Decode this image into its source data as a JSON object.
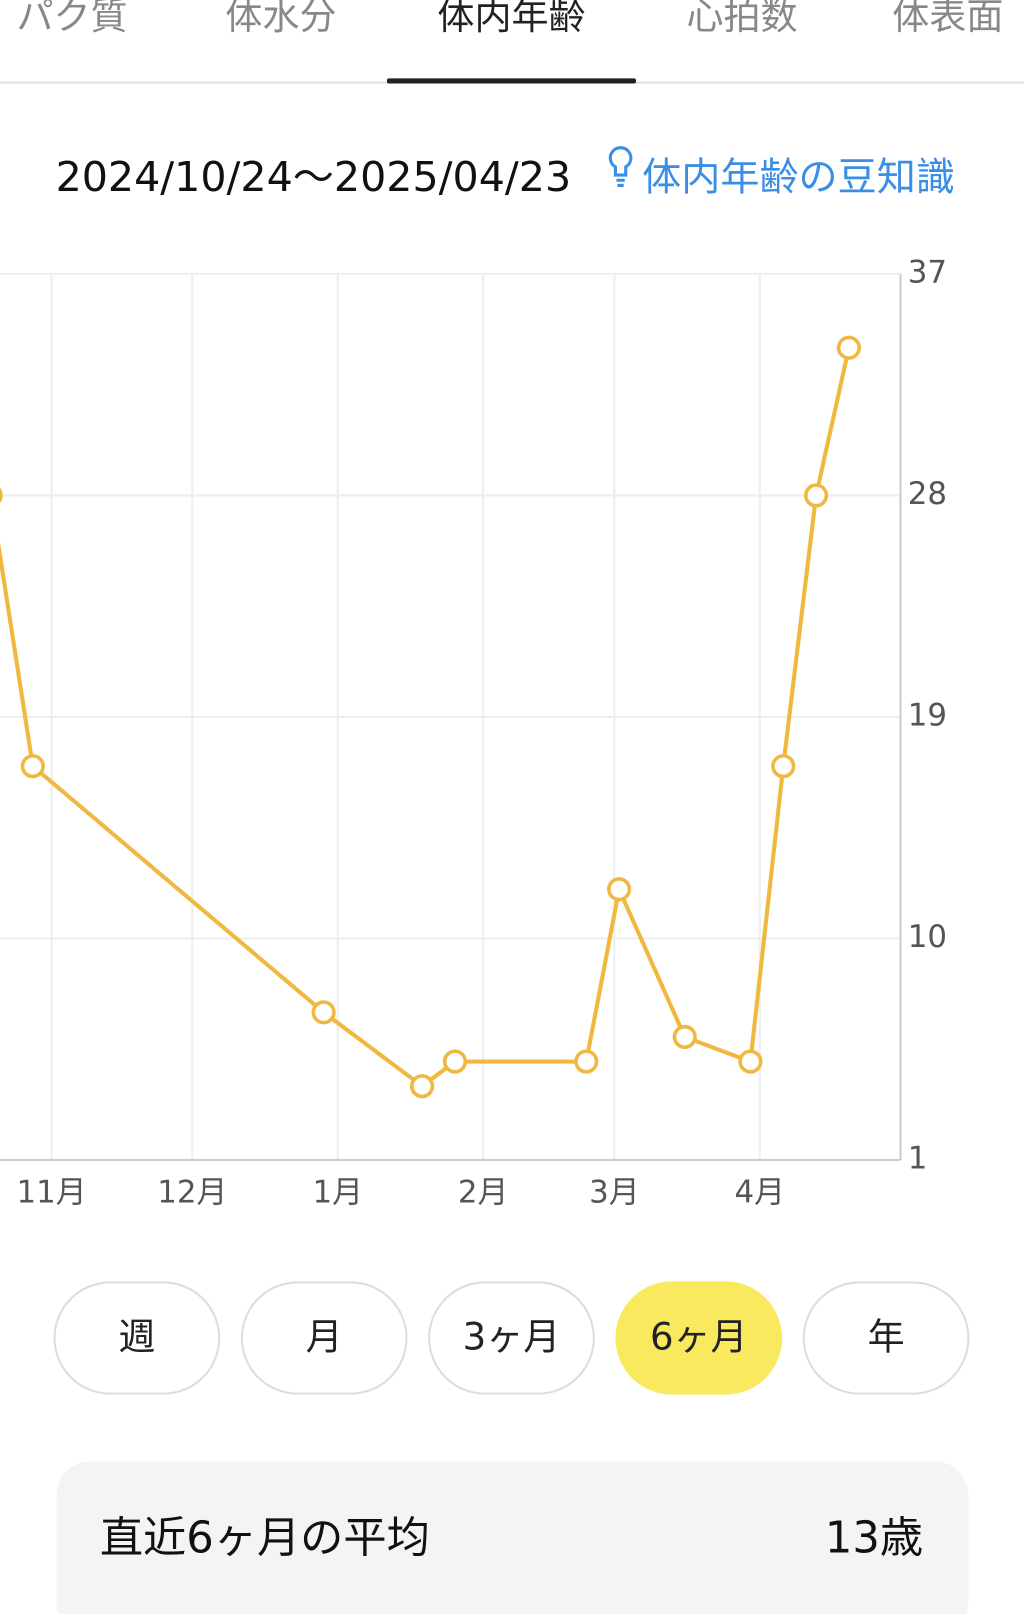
{
  "tabs": {
    "items": [
      "パク質",
      "体水分",
      "体内年齢",
      "心拍数",
      "体表面"
    ],
    "selected": 2
  },
  "date_range": "2024/10/24〜2025/04/23",
  "info_link": "体内年齢の豆知識",
  "chart_data": {
    "type": "line",
    "x": [
      "2024-10-19",
      "2024-10-28",
      "2024-12-29",
      "2025-01-19",
      "2025-01-26",
      "2025-02-23",
      "2025-03-02",
      "2025-03-16",
      "2025-03-30",
      "2025-04-06",
      "2025-04-13",
      "2025-04-20"
    ],
    "series": [
      {
        "name": "体内年齢",
        "color": "#f0b840",
        "values": [
          28,
          17,
          7,
          4,
          5,
          5,
          12,
          6,
          5,
          17,
          28,
          34
        ]
      }
    ],
    "xlim": [
      "2024-10-21",
      "2025-05-01"
    ],
    "xticks": [
      {
        "value": "2024-11-01",
        "label": "11月"
      },
      {
        "value": "2024-12-01",
        "label": "12月"
      },
      {
        "value": "2025-01-01",
        "label": "1月"
      },
      {
        "value": "2025-02-01",
        "label": "2月"
      },
      {
        "value": "2025-03-01",
        "label": "3月"
      },
      {
        "value": "2025-04-01",
        "label": "4月"
      }
    ],
    "ylim": [
      1,
      37
    ],
    "yticks": [
      1,
      10,
      19,
      28,
      37
    ],
    "grid": true,
    "y_axis_side": "right"
  },
  "period_buttons": {
    "items": [
      "週",
      "月",
      "3ヶ月",
      "6ヶ月",
      "年"
    ],
    "selected": 3
  },
  "summary": {
    "label": "直近6ヶ月の平均",
    "value": "13歳"
  }
}
